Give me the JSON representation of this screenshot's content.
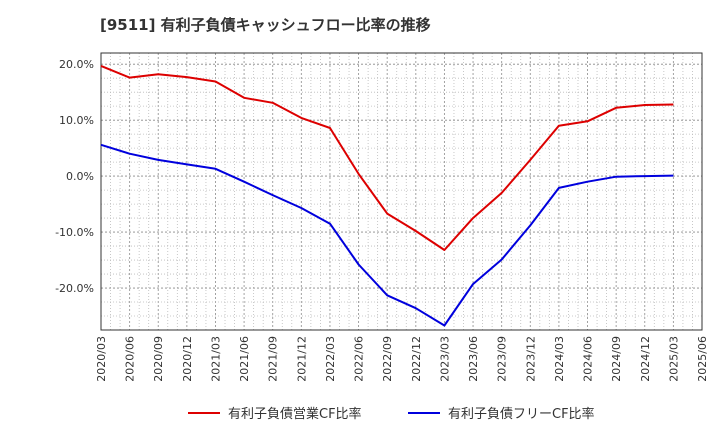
{
  "chart_data": {
    "type": "line",
    "title": "[9511]  有利子負債キャッシュフロー比率の推移",
    "xlabel": "",
    "ylabel": "",
    "x": [
      "2020/03",
      "2020/06",
      "2020/09",
      "2020/12",
      "2021/03",
      "2021/06",
      "2021/09",
      "2021/12",
      "2022/03",
      "2022/06",
      "2022/09",
      "2022/12",
      "2023/03",
      "2023/06",
      "2023/09",
      "2023/12",
      "2024/03",
      "2024/06",
      "2024/09",
      "2024/12",
      "2025/03",
      "2025/06"
    ],
    "ylim": [
      -27.5,
      22.0
    ],
    "yticks": [
      20,
      10,
      0,
      -10,
      -20
    ],
    "ytick_labels": [
      "20.0%",
      "10.0%",
      "0.0%",
      "-10.0%",
      "-20.0%"
    ],
    "grid": true,
    "legend_position": "bottom",
    "series": [
      {
        "name": "有利子負債営業CF比率",
        "color": "#dd0000",
        "values": [
          19.7,
          17.6,
          18.2,
          17.7,
          16.9,
          14.0,
          13.1,
          10.4,
          8.6,
          0.4,
          -6.7,
          -9.8,
          -13.2,
          -7.5,
          -3.0,
          2.9,
          9.0,
          9.8,
          12.2,
          12.7,
          12.8,
          null
        ]
      },
      {
        "name": "有利子負債フリーCF比率",
        "color": "#0000dd",
        "values": [
          5.6,
          4.0,
          2.9,
          2.1,
          1.3,
          -1.0,
          -3.4,
          -5.7,
          -8.5,
          -15.8,
          -21.3,
          -23.6,
          -26.7,
          -19.3,
          -14.9,
          -8.8,
          -2.1,
          -1.0,
          -0.1,
          0.0,
          0.1,
          null
        ]
      }
    ]
  }
}
